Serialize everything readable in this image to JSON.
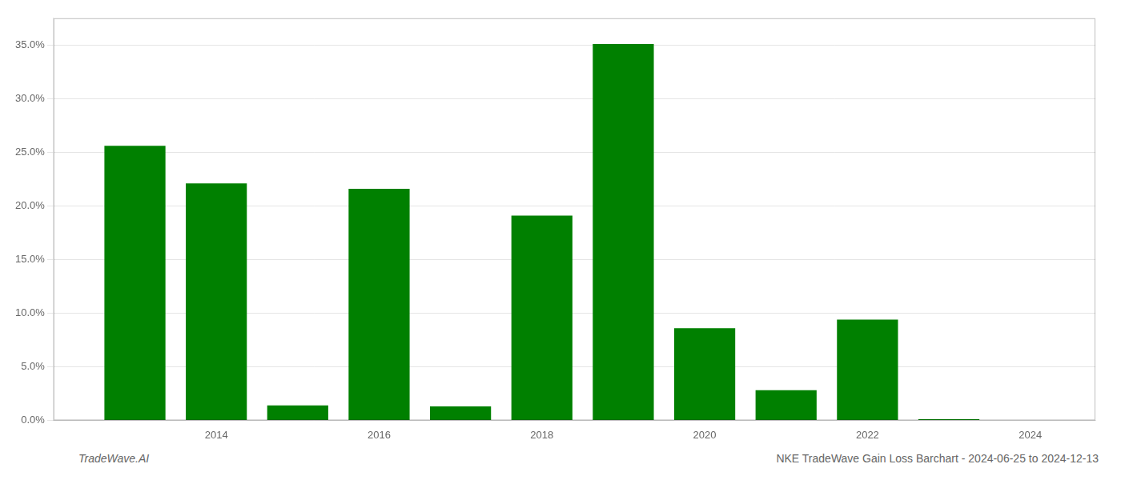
{
  "chart_data": {
    "type": "bar",
    "x": [
      2013,
      2014,
      2015,
      2016,
      2017,
      2018,
      2019,
      2020,
      2021,
      2022,
      2023
    ],
    "values": [
      0.256,
      0.221,
      0.014,
      0.216,
      0.013,
      0.191,
      0.351,
      0.086,
      0.028,
      0.094,
      0.001
    ],
    "color": "#008000",
    "xlim": [
      2012.0,
      2024.8
    ],
    "xticks": [
      2014,
      2016,
      2018,
      2020,
      2022,
      2024
    ],
    "ylim": [
      0,
      0.375
    ],
    "yticks": [
      {
        "value": 0.0,
        "label": "0.0%"
      },
      {
        "value": 0.05,
        "label": "5.0%"
      },
      {
        "value": 0.1,
        "label": "10.0%"
      },
      {
        "value": 0.15,
        "label": "15.0%"
      },
      {
        "value": 0.2,
        "label": "20.0%"
      },
      {
        "value": 0.25,
        "label": "25.0%"
      },
      {
        "value": 0.3,
        "label": "30.0%"
      },
      {
        "value": 0.35,
        "label": "35.0%"
      }
    ],
    "grid": true,
    "annotations": [
      "TradeWave.AI",
      "NKE TradeWave Gain Loss Barchart - 2024-06-25 to 2024-12-13"
    ]
  }
}
